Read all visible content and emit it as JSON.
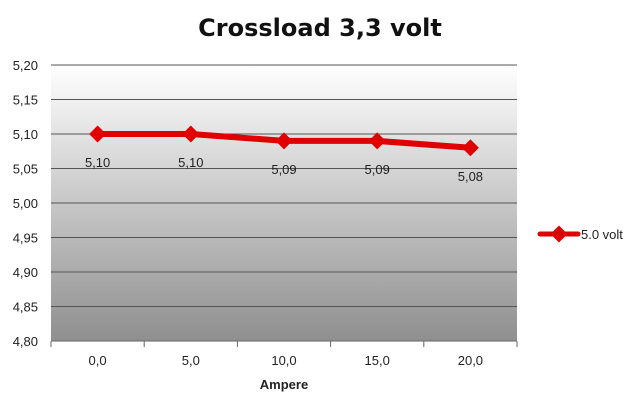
{
  "chart_data": {
    "type": "line",
    "title": "Crossload 3,3 volt",
    "xlabel": "Ampere",
    "ylabel": "",
    "categories": [
      "0,0",
      "5,0",
      "10,0",
      "15,0",
      "20,0"
    ],
    "y_ticks": [
      "4,80",
      "4,85",
      "4,90",
      "4,95",
      "5,00",
      "5,05",
      "5,10",
      "5,15",
      "5,20"
    ],
    "ylim": [
      4.8,
      5.2
    ],
    "series": [
      {
        "name": "5.0 volt",
        "values": [
          5.1,
          5.1,
          5.09,
          5.09,
          5.08
        ],
        "labels": [
          "5,10",
          "5,10",
          "5,09",
          "5,09",
          "5,08"
        ],
        "color": "#e00000"
      }
    ],
    "grid": true,
    "legend_position": "right",
    "plot_background": "gradient-grey"
  }
}
